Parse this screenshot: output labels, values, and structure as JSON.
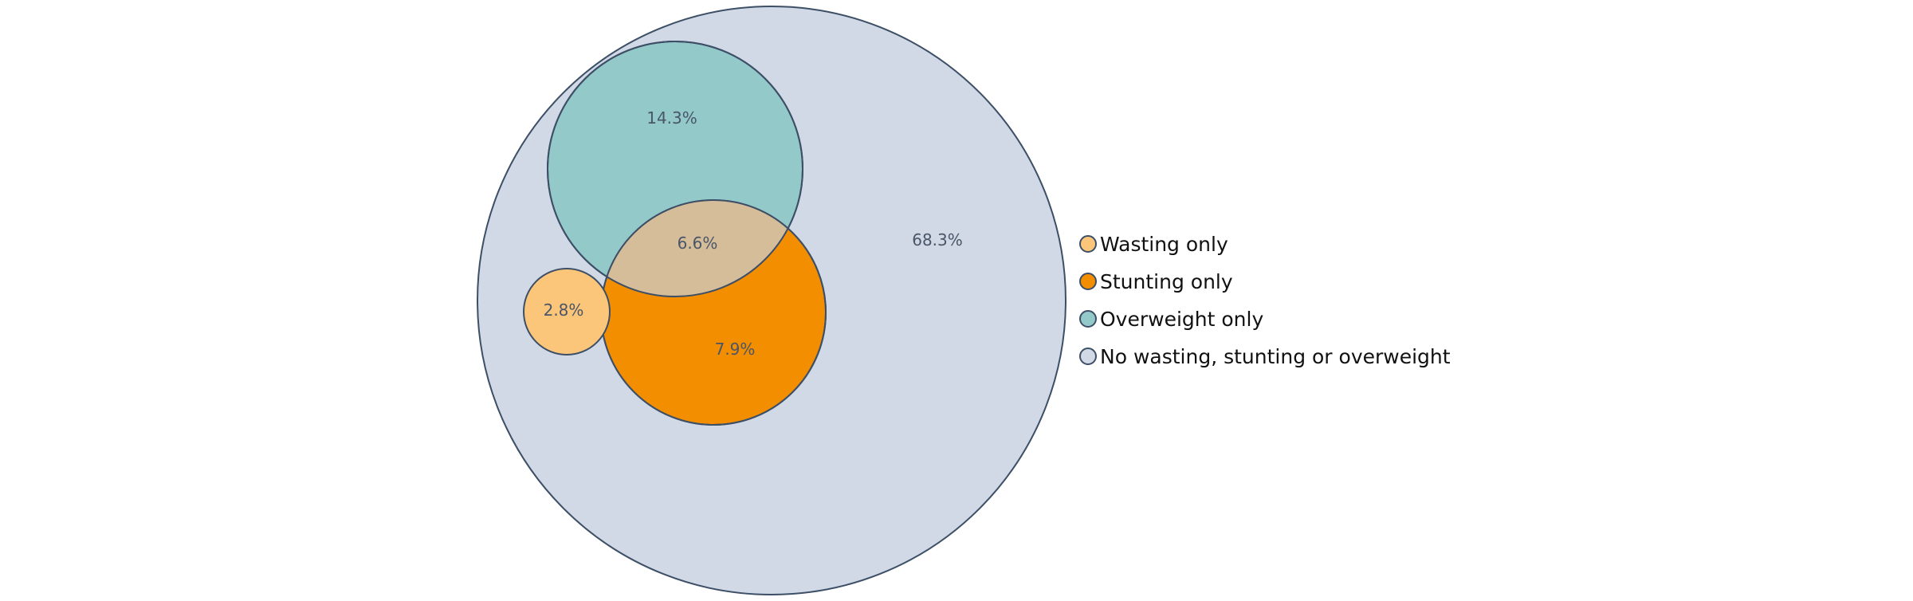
{
  "chart_data": {
    "type": "venn",
    "title": "",
    "series": [
      {
        "name": "Wasting only",
        "value_label": "2.8%",
        "color": "#fbc57a"
      },
      {
        "name": "Stunting only",
        "value_label": "7.9%",
        "color": "#f28e00"
      },
      {
        "name": "Overweight only",
        "value_label": "14.3%",
        "color": "#93c9c9"
      },
      {
        "name": "No wasting, stunting or overweight",
        "value_label": "68.3%",
        "color": "#d0d9e5"
      }
    ],
    "intersections": [
      {
        "sets": [
          "Stunting only",
          "Overweight only"
        ],
        "value_label": "6.6%",
        "color": "#d6bd9a"
      }
    ],
    "legend_position": "right",
    "outline_color": "#3d4f66"
  }
}
